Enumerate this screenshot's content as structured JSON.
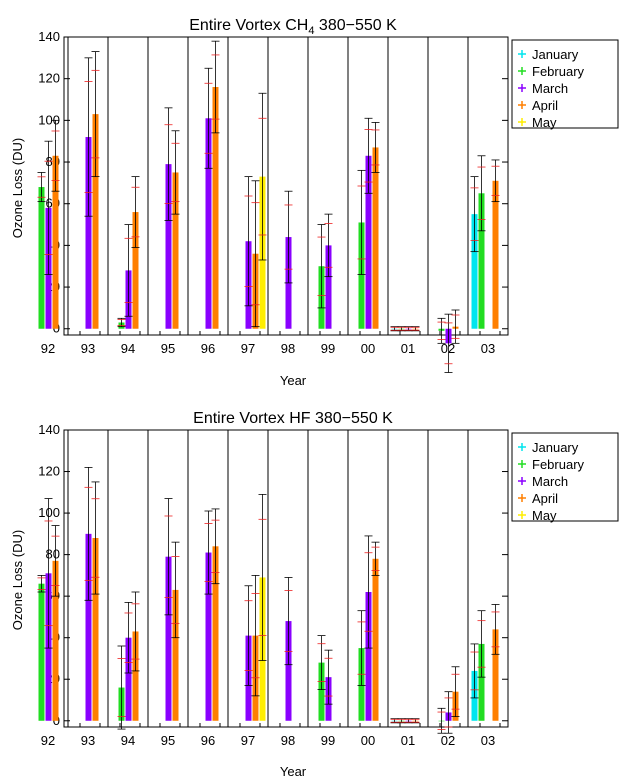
{
  "legend": {
    "entries": [
      {
        "label": "January",
        "color": "#00e5ee"
      },
      {
        "label": "February",
        "color": "#22dd22"
      },
      {
        "label": "March",
        "color": "#8a00ff"
      },
      {
        "label": "April",
        "color": "#ff7f00"
      },
      {
        "label": "May",
        "color": "#ffee00"
      }
    ]
  },
  "chart_data": [
    {
      "type": "bar",
      "title": "Entire Vortex CH₄ 380–550 K",
      "title_main": "Entire Vortex CH",
      "title_sub": "4",
      "title_tail": " 380−550 K",
      "xlabel": "Year",
      "ylabel": "Ozone Loss (DU)",
      "ylim": [
        -3,
        140
      ],
      "yticks": [
        "0",
        "20",
        "40",
        "60",
        "80",
        "100",
        "120",
        "140"
      ],
      "categories": [
        "92",
        "93",
        "94",
        "95",
        "96",
        "97",
        "98",
        "99",
        "00",
        "01",
        "02",
        "03"
      ],
      "grid": "vertical separators between years",
      "legend_position": "right",
      "series": [
        {
          "name": "January",
          "color": "#00e5ee",
          "values": [
            null,
            null,
            null,
            null,
            null,
            null,
            null,
            null,
            null,
            0,
            null,
            55
          ],
          "errors": [
            null,
            null,
            null,
            null,
            null,
            null,
            null,
            null,
            null,
            1,
            null,
            18
          ]
        },
        {
          "name": "February",
          "color": "#22dd22",
          "values": [
            68,
            null,
            3,
            null,
            null,
            null,
            null,
            30,
            51,
            0,
            -1,
            65
          ],
          "errors": [
            7,
            null,
            2,
            null,
            null,
            null,
            null,
            20,
            25,
            1,
            6,
            18
          ]
        },
        {
          "name": "March",
          "color": "#8a00ff",
          "values": [
            58,
            92,
            28,
            79,
            101,
            42,
            44,
            40,
            83,
            0,
            -7,
            null
          ],
          "errors": [
            32,
            38,
            22,
            27,
            24,
            31,
            22,
            15,
            18,
            1,
            14,
            null
          ]
        },
        {
          "name": "April",
          "color": "#ff7f00",
          "values": [
            83,
            103,
            56,
            75,
            116,
            36,
            null,
            null,
            87,
            0,
            1,
            71
          ],
          "errors": [
            17,
            30,
            17,
            20,
            22,
            35,
            null,
            null,
            12,
            1,
            8,
            10
          ]
        },
        {
          "name": "May",
          "color": "#ffee00",
          "values": [
            null,
            null,
            null,
            null,
            null,
            73,
            null,
            null,
            null,
            null,
            null,
            null
          ],
          "errors": [
            null,
            null,
            null,
            null,
            null,
            40,
            null,
            null,
            null,
            null,
            null,
            null
          ]
        }
      ]
    },
    {
      "type": "bar",
      "title": "Entire Vortex HF 380–550 K",
      "title_main": "Entire Vortex HF 380−550 K",
      "title_sub": "",
      "title_tail": "",
      "xlabel": "Year",
      "ylabel": "Ozone Loss (DU)",
      "ylim": [
        -3,
        140
      ],
      "yticks": [
        "0",
        "20",
        "40",
        "60",
        "80",
        "100",
        "120",
        "140"
      ],
      "categories": [
        "92",
        "93",
        "94",
        "95",
        "96",
        "97",
        "98",
        "99",
        "00",
        "01",
        "02",
        "03"
      ],
      "grid": "vertical separators between years",
      "legend_position": "right",
      "series": [
        {
          "name": "January",
          "color": "#00e5ee",
          "values": [
            null,
            null,
            null,
            null,
            null,
            null,
            null,
            null,
            null,
            0,
            null,
            24
          ],
          "errors": [
            null,
            null,
            null,
            null,
            null,
            null,
            null,
            null,
            null,
            1,
            null,
            13
          ]
        },
        {
          "name": "February",
          "color": "#22dd22",
          "values": [
            66,
            null,
            16,
            null,
            null,
            null,
            null,
            28,
            35,
            0,
            0,
            37
          ],
          "errors": [
            4,
            null,
            20,
            null,
            null,
            null,
            null,
            13,
            18,
            1,
            6,
            16
          ]
        },
        {
          "name": "March",
          "color": "#8a00ff",
          "values": [
            71,
            90,
            40,
            79,
            81,
            41,
            48,
            21,
            62,
            0,
            4,
            null
          ],
          "errors": [
            36,
            32,
            17,
            28,
            20,
            24,
            21,
            13,
            27,
            1,
            10,
            null
          ]
        },
        {
          "name": "April",
          "color": "#ff7f00",
          "values": [
            77,
            88,
            43,
            63,
            84,
            41,
            null,
            null,
            78,
            0,
            14,
            44
          ],
          "errors": [
            17,
            27,
            19,
            23,
            18,
            29,
            null,
            null,
            8,
            1,
            12,
            12
          ]
        },
        {
          "name": "May",
          "color": "#ffee00",
          "values": [
            null,
            null,
            null,
            null,
            null,
            69,
            null,
            null,
            null,
            null,
            null,
            null
          ],
          "errors": [
            null,
            null,
            null,
            null,
            null,
            40,
            null,
            null,
            null,
            null,
            null,
            null
          ]
        }
      ]
    }
  ]
}
